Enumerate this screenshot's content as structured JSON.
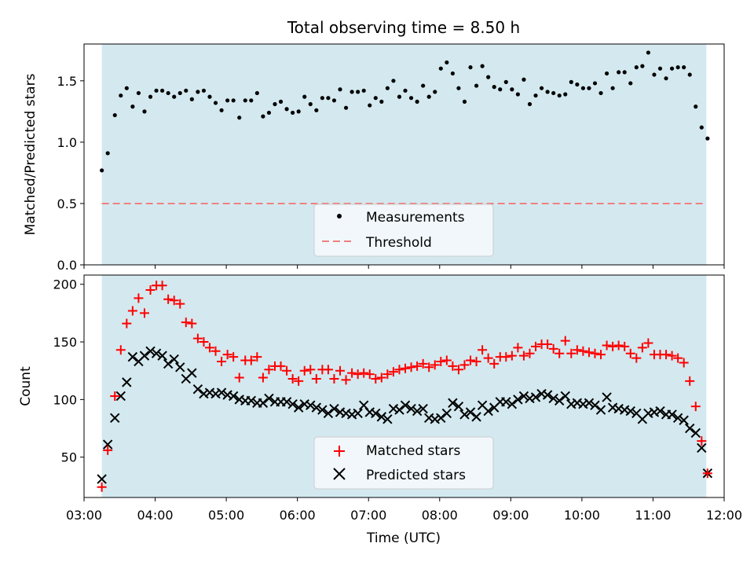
{
  "figure": {
    "title": "Total observing time = 8.50 h",
    "xlabel": "Time (UTC)",
    "x_ticks": [
      "03:00",
      "04:00",
      "05:00",
      "06:00",
      "07:00",
      "08:00",
      "09:00",
      "10:00",
      "11:00",
      "12:00"
    ],
    "shade_color": "#d3e9ef"
  },
  "chart_data": [
    {
      "type": "scatter",
      "panel": "top",
      "ylabel": "Matched/Predicted stars",
      "ylim": [
        0,
        1.8
      ],
      "yticks": [
        "0.0",
        "0.5",
        "1.0",
        "1.5"
      ],
      "xlim": [
        "03:00",
        "12:00"
      ],
      "shaded_interval": [
        "03:15",
        "11:45"
      ],
      "legend": {
        "placement": "lower-center"
      },
      "series": [
        {
          "name": "Measurements",
          "color": "#000000",
          "marker": "dot",
          "x": [
            "03:15",
            "03:20",
            "03:26",
            "03:31",
            "03:36",
            "03:41",
            "03:46",
            "03:51",
            "03:56",
            "04:01",
            "04:06",
            "04:11",
            "04:16",
            "04:21",
            "04:26",
            "04:31",
            "04:36",
            "04:41",
            "04:46",
            "04:51",
            "04:56",
            "05:01",
            "05:06",
            "05:11",
            "05:16",
            "05:21",
            "05:26",
            "05:31",
            "05:36",
            "05:41",
            "05:46",
            "05:51",
            "05:56",
            "06:01",
            "06:06",
            "06:11",
            "06:16",
            "06:21",
            "06:26",
            "06:31",
            "06:36",
            "06:41",
            "06:46",
            "06:51",
            "06:56",
            "07:01",
            "07:06",
            "07:11",
            "07:16",
            "07:21",
            "07:26",
            "07:31",
            "07:36",
            "07:41",
            "07:46",
            "07:51",
            "07:56",
            "08:01",
            "08:06",
            "08:11",
            "08:16",
            "08:21",
            "08:26",
            "08:31",
            "08:36",
            "08:41",
            "08:46",
            "08:51",
            "08:56",
            "09:01",
            "09:06",
            "09:11",
            "09:16",
            "09:21",
            "09:26",
            "09:31",
            "09:36",
            "09:41",
            "09:46",
            "09:51",
            "09:56",
            "10:01",
            "10:06",
            "10:11",
            "10:16",
            "10:21",
            "10:26",
            "10:31",
            "10:36",
            "10:41",
            "10:46",
            "10:51",
            "10:56",
            "11:01",
            "11:06",
            "11:11",
            "11:16",
            "11:21",
            "11:26",
            "11:31",
            "11:36",
            "11:41",
            "11:46"
          ],
          "y": [
            0.77,
            0.91,
            1.22,
            1.38,
            1.44,
            1.29,
            1.4,
            1.25,
            1.37,
            1.42,
            1.42,
            1.4,
            1.37,
            1.4,
            1.42,
            1.35,
            1.41,
            1.42,
            1.37,
            1.32,
            1.26,
            1.34,
            1.34,
            1.2,
            1.34,
            1.34,
            1.4,
            1.21,
            1.24,
            1.31,
            1.33,
            1.27,
            1.24,
            1.25,
            1.37,
            1.31,
            1.26,
            1.36,
            1.36,
            1.34,
            1.43,
            1.28,
            1.41,
            1.41,
            1.42,
            1.3,
            1.36,
            1.33,
            1.44,
            1.5,
            1.37,
            1.42,
            1.36,
            1.33,
            1.46,
            1.37,
            1.41,
            1.6,
            1.65,
            1.56,
            1.44,
            1.33,
            1.61,
            1.46,
            1.62,
            1.53,
            1.45,
            1.43,
            1.49,
            1.43,
            1.39,
            1.51,
            1.31,
            1.38,
            1.44,
            1.41,
            1.4,
            1.38,
            1.39,
            1.49,
            1.47,
            1.44,
            1.44,
            1.48,
            1.4,
            1.56,
            1.44,
            1.57,
            1.57,
            1.48,
            1.61,
            1.62,
            1.73,
            1.55,
            1.6,
            1.52,
            1.6,
            1.61,
            1.61,
            1.55,
            1.29,
            1.12,
            1.03
          ]
        },
        {
          "name": "Threshold",
          "color": "#f08080",
          "style": "dashed",
          "y": 0.5
        }
      ]
    },
    {
      "type": "scatter",
      "panel": "bottom",
      "ylabel": "Count",
      "ylim": [
        15,
        208
      ],
      "yticks": [
        "50",
        "100",
        "150",
        "200"
      ],
      "xlim": [
        "03:00",
        "12:00"
      ],
      "shaded_interval": [
        "03:15",
        "11:45"
      ],
      "legend": {
        "placement": "lower-center"
      },
      "series": [
        {
          "name": "Matched stars",
          "color": "#ff0000",
          "marker": "plus",
          "x": [
            "03:15",
            "03:20",
            "03:26",
            "03:31",
            "03:36",
            "03:41",
            "03:46",
            "03:51",
            "03:56",
            "04:01",
            "04:06",
            "04:11",
            "04:16",
            "04:21",
            "04:26",
            "04:31",
            "04:36",
            "04:41",
            "04:46",
            "04:51",
            "04:56",
            "05:01",
            "05:06",
            "05:11",
            "05:16",
            "05:21",
            "05:26",
            "05:31",
            "05:36",
            "05:41",
            "05:46",
            "05:51",
            "05:56",
            "06:01",
            "06:06",
            "06:11",
            "06:16",
            "06:21",
            "06:26",
            "06:31",
            "06:36",
            "06:41",
            "06:46",
            "06:51",
            "06:56",
            "07:01",
            "07:06",
            "07:11",
            "07:16",
            "07:21",
            "07:26",
            "07:31",
            "07:36",
            "07:41",
            "07:46",
            "07:51",
            "07:56",
            "08:01",
            "08:06",
            "08:11",
            "08:16",
            "08:21",
            "08:26",
            "08:31",
            "08:36",
            "08:41",
            "08:46",
            "08:51",
            "08:56",
            "09:01",
            "09:06",
            "09:11",
            "09:16",
            "09:21",
            "09:26",
            "09:31",
            "09:36",
            "09:41",
            "09:46",
            "09:51",
            "09:56",
            "10:01",
            "10:06",
            "10:11",
            "10:16",
            "10:21",
            "10:26",
            "10:31",
            "10:36",
            "10:41",
            "10:46",
            "10:51",
            "10:56",
            "11:01",
            "11:06",
            "11:11",
            "11:16",
            "11:21",
            "11:26",
            "11:31",
            "11:36",
            "11:41",
            "11:46"
          ],
          "y": [
            24,
            56,
            103,
            143,
            166,
            177,
            188,
            175,
            195,
            199,
            199,
            187,
            186,
            183,
            167,
            166,
            153,
            150,
            145,
            142,
            133,
            139,
            137,
            119,
            134,
            134,
            137,
            119,
            126,
            129,
            129,
            125,
            118,
            116,
            125,
            126,
            118,
            126,
            126,
            118,
            125,
            117,
            123,
            122,
            123,
            122,
            118,
            119,
            122,
            124,
            126,
            127,
            128,
            129,
            131,
            128,
            130,
            133,
            134,
            129,
            126,
            130,
            134,
            133,
            143,
            136,
            131,
            137,
            137,
            138,
            145,
            138,
            140,
            146,
            148,
            148,
            144,
            140,
            151,
            140,
            143,
            142,
            141,
            140,
            139,
            147,
            146,
            147,
            146,
            140,
            136,
            145,
            149,
            139,
            139,
            139,
            138,
            136,
            132,
            116,
            94,
            64,
            36
          ]
        },
        {
          "name": "Predicted stars",
          "color": "#000000",
          "marker": "x",
          "x": [
            "03:15",
            "03:20",
            "03:26",
            "03:31",
            "03:36",
            "03:41",
            "03:46",
            "03:51",
            "03:56",
            "04:01",
            "04:06",
            "04:11",
            "04:16",
            "04:21",
            "04:26",
            "04:31",
            "04:36",
            "04:41",
            "04:46",
            "04:51",
            "04:56",
            "05:01",
            "05:06",
            "05:11",
            "05:16",
            "05:21",
            "05:26",
            "05:31",
            "05:36",
            "05:41",
            "05:46",
            "05:51",
            "05:56",
            "06:01",
            "06:06",
            "06:11",
            "06:16",
            "06:21",
            "06:26",
            "06:31",
            "06:36",
            "06:41",
            "06:46",
            "06:51",
            "06:56",
            "07:01",
            "07:06",
            "07:11",
            "07:16",
            "07:21",
            "07:26",
            "07:31",
            "07:36",
            "07:41",
            "07:46",
            "07:51",
            "07:56",
            "08:01",
            "08:06",
            "08:11",
            "08:16",
            "08:21",
            "08:26",
            "08:31",
            "08:36",
            "08:41",
            "08:46",
            "08:51",
            "08:56",
            "09:01",
            "09:06",
            "09:11",
            "09:16",
            "09:21",
            "09:26",
            "09:31",
            "09:36",
            "09:41",
            "09:46",
            "09:51",
            "09:56",
            "10:01",
            "10:06",
            "10:11",
            "10:16",
            "10:21",
            "10:26",
            "10:31",
            "10:36",
            "10:41",
            "10:46",
            "10:51",
            "10:56",
            "11:01",
            "11:06",
            "11:11",
            "11:16",
            "11:21",
            "11:26",
            "11:31",
            "11:36",
            "11:41",
            "11:46"
          ],
          "y": [
            31,
            61,
            84,
            103,
            115,
            137,
            133,
            138,
            142,
            140,
            138,
            131,
            135,
            128,
            118,
            123,
            109,
            105,
            106,
            105,
            106,
            104,
            103,
            100,
            99,
            99,
            97,
            97,
            101,
            98,
            98,
            98,
            96,
            93,
            96,
            95,
            93,
            91,
            88,
            92,
            89,
            88,
            87,
            88,
            95,
            89,
            88,
            85,
            83,
            92,
            91,
            95,
            92,
            90,
            92,
            84,
            83,
            84,
            88,
            97,
            94,
            87,
            89,
            85,
            95,
            90,
            93,
            98,
            98,
            96,
            100,
            103,
            101,
            102,
            105,
            104,
            101,
            99,
            103,
            96,
            97,
            96,
            97,
            95,
            91,
            102,
            93,
            92,
            91,
            90,
            88,
            83,
            88,
            89,
            90,
            87,
            87,
            84,
            82,
            75,
            71,
            58,
            36
          ]
        }
      ]
    }
  ]
}
